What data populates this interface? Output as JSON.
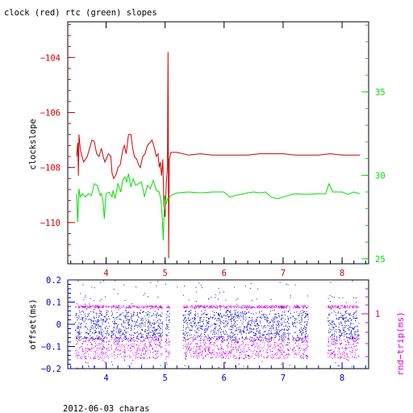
{
  "title": "clock (red) rtc (green) slopes",
  "footer": "2012-06-03 charas",
  "colors": {
    "clock": "#d00000",
    "rtc": "#00dd00",
    "offset": "#0000cc",
    "rtt": "#dd00dd",
    "frame": "#000000"
  },
  "chart_data": [
    {
      "type": "line",
      "panel": "top",
      "xlim": [
        3.35,
        8.45
      ],
      "x_ticks": [
        4,
        5,
        6,
        7,
        8
      ],
      "x_tick_labels": [
        "4",
        "5",
        "6",
        "7",
        "8"
      ],
      "left_axis": {
        "label": "clockslope",
        "ylim": [
          -111.5,
          -102.7
        ],
        "ticks": [
          -104,
          -106,
          -108,
          -110
        ],
        "tick_labels": [
          "−104",
          "−106",
          "−108",
          "−110"
        ],
        "minor_step": 0.4
      },
      "right_axis": {
        "ylim": [
          24.7,
          39.2
        ],
        "ticks": [
          25,
          30,
          35
        ],
        "tick_labels": [
          "25",
          "30",
          "35"
        ],
        "minor_step": 1
      },
      "series": [
        {
          "color": "red",
          "axis": "left",
          "points": [
            [
              3.5,
              -107.6
            ],
            [
              3.52,
              -107.1
            ],
            [
              3.53,
              -108.3
            ],
            [
              3.54,
              -106.8
            ],
            [
              3.56,
              -107.3
            ],
            [
              3.58,
              -107.5
            ],
            [
              3.62,
              -107.8
            ],
            [
              3.68,
              -107.6
            ],
            [
              3.72,
              -107.3
            ],
            [
              3.76,
              -107.0
            ],
            [
              3.8,
              -107.05
            ],
            [
              3.84,
              -107.5
            ],
            [
              3.88,
              -107.6
            ],
            [
              3.92,
              -107.3
            ],
            [
              3.95,
              -107.6
            ],
            [
              3.98,
              -107.8
            ],
            [
              4.0,
              -107.7
            ],
            [
              4.04,
              -107.5
            ],
            [
              4.08,
              -107.6
            ],
            [
              4.1,
              -108.2
            ],
            [
              4.13,
              -108.4
            ],
            [
              4.17,
              -108.25
            ],
            [
              4.2,
              -108.0
            ],
            [
              4.24,
              -107.9
            ],
            [
              4.28,
              -107.4
            ],
            [
              4.31,
              -107.2
            ],
            [
              4.34,
              -107.5
            ],
            [
              4.38,
              -106.8
            ],
            [
              4.42,
              -106.8
            ],
            [
              4.45,
              -107.3
            ],
            [
              4.48,
              -107.6
            ],
            [
              4.52,
              -107.7
            ],
            [
              4.55,
              -107.9
            ],
            [
              4.58,
              -108.0
            ],
            [
              4.62,
              -107.6
            ],
            [
              4.66,
              -107.5
            ],
            [
              4.7,
              -107.2
            ],
            [
              4.74,
              -107.1
            ],
            [
              4.78,
              -107.0
            ],
            [
              4.82,
              -107.3
            ],
            [
              4.85,
              -107.6
            ],
            [
              4.88,
              -107.5
            ],
            [
              4.9,
              -108.0
            ],
            [
              4.92,
              -107.8
            ],
            [
              4.94,
              -108.3
            ],
            [
              4.96,
              -107.7
            ],
            [
              4.98,
              -109.4
            ],
            [
              5.0,
              -109.8
            ],
            [
              5.02,
              -108.6
            ],
            [
              5.04,
              -108.0
            ],
            [
              5.05,
              -103.8
            ],
            [
              5.06,
              -111.3
            ],
            [
              5.07,
              -107.7
            ],
            [
              5.1,
              -107.45
            ],
            [
              5.2,
              -107.45
            ],
            [
              5.4,
              -107.55
            ],
            [
              5.6,
              -107.5
            ],
            [
              5.8,
              -107.55
            ],
            [
              6.0,
              -107.55
            ],
            [
              6.2,
              -107.55
            ],
            [
              6.4,
              -107.55
            ],
            [
              6.6,
              -107.5
            ],
            [
              6.8,
              -107.5
            ],
            [
              7.0,
              -107.5
            ],
            [
              7.2,
              -107.55
            ],
            [
              7.4,
              -107.55
            ],
            [
              7.6,
              -107.55
            ],
            [
              7.8,
              -107.5
            ],
            [
              8.0,
              -107.55
            ],
            [
              8.2,
              -107.55
            ],
            [
              8.3,
              -107.55
            ]
          ]
        },
        {
          "color": "green",
          "axis": "right",
          "points": [
            [
              3.5,
              28.9
            ],
            [
              3.52,
              27.2
            ],
            [
              3.54,
              29.2
            ],
            [
              3.56,
              28.7
            ],
            [
              3.6,
              28.9
            ],
            [
              3.65,
              28.7
            ],
            [
              3.7,
              28.9
            ],
            [
              3.75,
              28.8
            ],
            [
              3.8,
              29.5
            ],
            [
              3.85,
              29.4
            ],
            [
              3.9,
              28.8
            ],
            [
              3.92,
              28.9
            ],
            [
              3.95,
              28.4
            ],
            [
              3.97,
              27.4
            ],
            [
              4.0,
              28.9
            ],
            [
              4.05,
              29.0
            ],
            [
              4.1,
              28.7
            ],
            [
              4.12,
              29.1
            ],
            [
              4.15,
              28.6
            ],
            [
              4.18,
              29.1
            ],
            [
              4.2,
              29.5
            ],
            [
              4.25,
              29.0
            ],
            [
              4.28,
              29.7
            ],
            [
              4.32,
              29.9
            ],
            [
              4.35,
              29.6
            ],
            [
              4.38,
              30.1
            ],
            [
              4.42,
              29.3
            ],
            [
              4.46,
              29.8
            ],
            [
              4.5,
              29.4
            ],
            [
              4.55,
              29.5
            ],
            [
              4.6,
              29.6
            ],
            [
              4.65,
              28.7
            ],
            [
              4.7,
              29.4
            ],
            [
              4.75,
              29.2
            ],
            [
              4.8,
              29.7
            ],
            [
              4.85,
              29.1
            ],
            [
              4.9,
              29.0
            ],
            [
              4.93,
              28.5
            ],
            [
              4.95,
              27.6
            ],
            [
              4.97,
              26.1
            ],
            [
              4.99,
              28.8
            ],
            [
              5.02,
              28.3
            ],
            [
              5.04,
              28.6
            ],
            [
              5.06,
              28.6
            ],
            [
              5.1,
              28.8
            ],
            [
              5.2,
              28.95
            ],
            [
              5.4,
              29.0
            ],
            [
              5.6,
              28.95
            ],
            [
              5.8,
              29.0
            ],
            [
              6.0,
              29.0
            ],
            [
              6.1,
              28.7
            ],
            [
              6.2,
              28.8
            ],
            [
              6.4,
              28.95
            ],
            [
              6.5,
              29.0
            ],
            [
              6.6,
              28.95
            ],
            [
              6.7,
              29.0
            ],
            [
              6.8,
              28.7
            ],
            [
              6.9,
              28.6
            ],
            [
              7.0,
              28.7
            ],
            [
              7.2,
              28.9
            ],
            [
              7.4,
              28.85
            ],
            [
              7.6,
              28.9
            ],
            [
              7.72,
              28.9
            ],
            [
              7.78,
              29.5
            ],
            [
              7.84,
              29.0
            ],
            [
              8.0,
              29.0
            ],
            [
              8.1,
              28.85
            ],
            [
              8.2,
              29.0
            ],
            [
              8.3,
              28.9
            ]
          ]
        }
      ]
    },
    {
      "type": "scatter",
      "panel": "bottom",
      "xlim": [
        3.35,
        8.45
      ],
      "x_ticks": [
        4,
        5,
        6,
        7,
        8
      ],
      "x_tick_labels": [
        "4",
        "5",
        "6",
        "7",
        "8"
      ],
      "left_axis": {
        "label": "offset(ms)",
        "ylim": [
          -0.2,
          0.2
        ],
        "ticks": [
          0.2,
          0.1,
          0,
          -0.1,
          -0.2
        ],
        "tick_labels": [
          "0.2",
          "0.1",
          "0",
          "−0.1",
          "−0.2"
        ]
      },
      "right_axis": {
        "label": "rnd−trip(ms)",
        "ticks": [
          1
        ],
        "tick_labels": [
          "1"
        ]
      },
      "data_segments": [
        [
          3.47,
          4.05
        ],
        [
          4.08,
          4.95
        ],
        [
          5.0,
          5.07
        ],
        [
          5.3,
          7.12
        ],
        [
          7.15,
          7.42
        ],
        [
          7.75,
          8.28
        ]
      ],
      "series": [
        {
          "name": "offset",
          "color": "blue",
          "marker": "dot",
          "density_per_unit_x": 500,
          "core_band": [
            -0.07,
            0.06
          ],
          "outlier_range": [
            -0.2,
            0.2
          ],
          "y_out_points": [
            [
              3.6,
              0.18
            ],
            [
              3.75,
              0.17
            ],
            [
              3.9,
              0.19
            ],
            [
              4.3,
              0.18
            ],
            [
              4.5,
              0.17
            ],
            [
              4.75,
              0.19
            ],
            [
              5.2,
              0.17
            ],
            [
              7.2,
              0.18
            ],
            [
              7.8,
              0.19
            ],
            [
              3.7,
              -0.19
            ],
            [
              4.6,
              -0.18
            ],
            [
              5.02,
              -0.17
            ],
            [
              7.3,
              -0.15
            ],
            [
              8.1,
              -0.16
            ]
          ]
        },
        {
          "name": "round-trip",
          "color": "magenta",
          "marker": "dot",
          "clusters": [
            {
              "center": 0.08,
              "spread": 0.006,
              "density_per_unit_x": 160
            },
            {
              "center": -0.105,
              "spread": 0.05,
              "density_per_unit_x": 300
            }
          ]
        }
      ]
    }
  ]
}
